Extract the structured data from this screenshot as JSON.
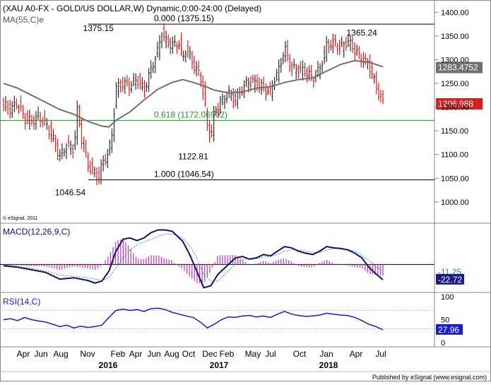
{
  "colors": {
    "up": "#2e2e2e",
    "down": "#d62020",
    "ma": "#707070",
    "fib": "#2e8b2e",
    "macd": "#10106e",
    "signal": "#2a9a6a",
    "hist": "#c040c0",
    "rsi": "#1a1ad0",
    "ma_tag": "#707070",
    "price_tag": "#d62020",
    "neg_tag": "#1a1a80",
    "rsi_tag": "#1a1ad0"
  },
  "chart_data": {
    "type": "candlestick",
    "title": "(XAU A0-FX - GOLD/US DOLLAR,W) Dynamic,0:00-24:00 (Delayed)",
    "ma_label": "MA(55,C)e",
    "watermark": "© eSignal, 2011",
    "footer": "Published by eSignal (www.esignal.com)",
    "price_axis": {
      "ylim": [
        955,
        1420
      ],
      "ticks": [
        "1000.00",
        "1050.00",
        "1100.00",
        "1150.00",
        "1200.00",
        "1250.00",
        "1300.00",
        "1350.00",
        "1400.00"
      ]
    },
    "time_labels": [
      "Apr",
      "Jun",
      "Aug",
      "Nov",
      "Feb",
      "Apr",
      "Jun",
      "Aug",
      "Oct",
      "Dec",
      "Feb",
      "May",
      "Jul",
      "Oct",
      "Jan",
      "Apr",
      "Jul"
    ],
    "year_labels": [
      "2016",
      "2017",
      "2018"
    ],
    "levels": [
      {
        "label": "0.000 (1375.15)",
        "price": 1375.15
      },
      {
        "label": "0.618 (1172.06902)",
        "price": 1172.07
      },
      {
        "label": "1.000 (1046.54)",
        "price": 1046.54
      }
    ],
    "annotations": [
      "1375.15",
      "1122.81",
      "1046.54",
      "1365.24"
    ],
    "last_price": "1206.988",
    "ma_value": "1283.4752",
    "close_path": [
      [
        0,
        1205
      ],
      [
        10,
        1195
      ],
      [
        20,
        1210
      ],
      [
        30,
        1175
      ],
      [
        40,
        1170
      ],
      [
        50,
        1180
      ],
      [
        60,
        1165
      ],
      [
        70,
        1135
      ],
      [
        80,
        1095
      ],
      [
        90,
        1120
      ],
      [
        100,
        1110
      ],
      [
        105,
        1195
      ],
      [
        110,
        1140
      ],
      [
        120,
        1080
      ],
      [
        130,
        1060
      ],
      [
        135,
        1050
      ],
      [
        140,
        1080
      ],
      [
        150,
        1105
      ],
      [
        155,
        1150
      ],
      [
        160,
        1240
      ],
      [
        170,
        1250
      ],
      [
        180,
        1245
      ],
      [
        190,
        1260
      ],
      [
        200,
        1235
      ],
      [
        210,
        1280
      ],
      [
        220,
        1320
      ],
      [
        225,
        1360
      ],
      [
        230,
        1340
      ],
      [
        240,
        1330
      ],
      [
        250,
        1335
      ],
      [
        255,
        1300
      ],
      [
        260,
        1325
      ],
      [
        270,
        1290
      ],
      [
        280,
        1265
      ],
      [
        285,
        1225
      ],
      [
        290,
        1160
      ],
      [
        295,
        1135
      ],
      [
        300,
        1190
      ],
      [
        310,
        1210
      ],
      [
        320,
        1230
      ],
      [
        330,
        1215
      ],
      [
        340,
        1240
      ],
      [
        350,
        1255
      ],
      [
        360,
        1250
      ],
      [
        370,
        1240
      ],
      [
        380,
        1230
      ],
      [
        385,
        1260
      ],
      [
        390,
        1270
      ],
      [
        400,
        1325
      ],
      [
        410,
        1280
      ],
      [
        420,
        1280
      ],
      [
        430,
        1275
      ],
      [
        440,
        1260
      ],
      [
        450,
        1280
      ],
      [
        460,
        1330
      ],
      [
        470,
        1335
      ],
      [
        480,
        1325
      ],
      [
        490,
        1340
      ],
      [
        500,
        1320
      ],
      [
        510,
        1300
      ],
      [
        520,
        1290
      ],
      [
        530,
        1245
      ],
      [
        540,
        1207
      ]
    ],
    "ma_path": [
      [
        0,
        1250
      ],
      [
        20,
        1240
      ],
      [
        40,
        1225
      ],
      [
        60,
        1210
      ],
      [
        80,
        1195
      ],
      [
        100,
        1185
      ],
      [
        120,
        1170
      ],
      [
        140,
        1160
      ],
      [
        150,
        1158
      ],
      [
        160,
        1172
      ],
      [
        180,
        1190
      ],
      [
        200,
        1215
      ],
      [
        220,
        1238
      ],
      [
        240,
        1252
      ],
      [
        255,
        1258
      ],
      [
        270,
        1252
      ],
      [
        285,
        1245
      ],
      [
        300,
        1236
      ],
      [
        320,
        1230
      ],
      [
        340,
        1232
      ],
      [
        360,
        1240
      ],
      [
        380,
        1243
      ],
      [
        400,
        1252
      ],
      [
        420,
        1258
      ],
      [
        440,
        1262
      ],
      [
        460,
        1276
      ],
      [
        480,
        1290
      ],
      [
        500,
        1298
      ],
      [
        520,
        1295
      ],
      [
        540,
        1285
      ]
    ],
    "macd": {
      "label": "MACD(12,26,9,C)",
      "ylim": [
        -40,
        60
      ],
      "values_shown": [
        "-11.25",
        "-22.72"
      ],
      "macd_path": [
        [
          0,
          -2
        ],
        [
          20,
          -4
        ],
        [
          40,
          -8
        ],
        [
          60,
          -12
        ],
        [
          80,
          -22
        ],
        [
          100,
          -20
        ],
        [
          120,
          -24
        ],
        [
          130,
          -28
        ],
        [
          140,
          -25
        ],
        [
          150,
          -10
        ],
        [
          160,
          20
        ],
        [
          170,
          38
        ],
        [
          180,
          40
        ],
        [
          190,
          36
        ],
        [
          200,
          40
        ],
        [
          210,
          48
        ],
        [
          220,
          52
        ],
        [
          230,
          52
        ],
        [
          240,
          50
        ],
        [
          255,
          35
        ],
        [
          265,
          15
        ],
        [
          275,
          -10
        ],
        [
          285,
          -35
        ],
        [
          295,
          -32
        ],
        [
          305,
          -15
        ],
        [
          315,
          -5
        ],
        [
          330,
          10
        ],
        [
          340,
          12
        ],
        [
          350,
          8
        ],
        [
          360,
          10
        ],
        [
          370,
          15
        ],
        [
          380,
          13
        ],
        [
          390,
          20
        ],
        [
          400,
          27
        ],
        [
          410,
          25
        ],
        [
          420,
          20
        ],
        [
          430,
          17
        ],
        [
          440,
          15
        ],
        [
          450,
          20
        ],
        [
          460,
          27
        ],
        [
          470,
          25
        ],
        [
          480,
          24
        ],
        [
          490,
          22
        ],
        [
          500,
          17
        ],
        [
          510,
          10
        ],
        [
          520,
          -4
        ],
        [
          530,
          -14
        ],
        [
          540,
          -23
        ]
      ],
      "signal_path": [
        [
          0,
          -1
        ],
        [
          20,
          -3
        ],
        [
          40,
          -6
        ],
        [
          60,
          -10
        ],
        [
          80,
          -16
        ],
        [
          100,
          -18
        ],
        [
          120,
          -20
        ],
        [
          140,
          -24
        ],
        [
          150,
          -20
        ],
        [
          160,
          -5
        ],
        [
          170,
          10
        ],
        [
          180,
          22
        ],
        [
          190,
          30
        ],
        [
          200,
          34
        ],
        [
          215,
          40
        ],
        [
          230,
          46
        ],
        [
          245,
          45
        ],
        [
          255,
          40
        ],
        [
          265,
          28
        ],
        [
          275,
          10
        ],
        [
          285,
          -15
        ],
        [
          295,
          -25
        ],
        [
          305,
          -25
        ],
        [
          315,
          -15
        ],
        [
          330,
          0
        ],
        [
          340,
          7
        ],
        [
          350,
          9
        ],
        [
          360,
          9
        ],
        [
          370,
          11
        ],
        [
          380,
          12
        ],
        [
          390,
          15
        ],
        [
          400,
          20
        ],
        [
          410,
          22
        ],
        [
          420,
          22
        ],
        [
          430,
          20
        ],
        [
          440,
          18
        ],
        [
          450,
          18
        ],
        [
          460,
          22
        ],
        [
          470,
          24
        ],
        [
          480,
          24
        ],
        [
          490,
          23
        ],
        [
          500,
          20
        ],
        [
          510,
          14
        ],
        [
          520,
          6
        ],
        [
          530,
          -3
        ],
        [
          540,
          -11
        ]
      ]
    },
    "rsi": {
      "label": "RSI(14,C)",
      "ylim": [
        0,
        100
      ],
      "ticks": [
        "100",
        "50",
        "0"
      ],
      "value_shown": "27.96",
      "rsi_path": [
        [
          0,
          50
        ],
        [
          10,
          52
        ],
        [
          20,
          48
        ],
        [
          30,
          55
        ],
        [
          40,
          50
        ],
        [
          50,
          47
        ],
        [
          60,
          45
        ],
        [
          70,
          40
        ],
        [
          80,
          35
        ],
        [
          90,
          38
        ],
        [
          100,
          32
        ],
        [
          110,
          36
        ],
        [
          120,
          33
        ],
        [
          130,
          35
        ],
        [
          140,
          38
        ],
        [
          150,
          55
        ],
        [
          160,
          70
        ],
        [
          170,
          73
        ],
        [
          180,
          70
        ],
        [
          190,
          72
        ],
        [
          200,
          68
        ],
        [
          210,
          74
        ],
        [
          220,
          75
        ],
        [
          230,
          72
        ],
        [
          240,
          66
        ],
        [
          250,
          62
        ],
        [
          260,
          58
        ],
        [
          270,
          55
        ],
        [
          280,
          45
        ],
        [
          290,
          32
        ],
        [
          300,
          40
        ],
        [
          310,
          50
        ],
        [
          320,
          56
        ],
        [
          330,
          55
        ],
        [
          340,
          58
        ],
        [
          350,
          59
        ],
        [
          360,
          56
        ],
        [
          370,
          58
        ],
        [
          380,
          55
        ],
        [
          390,
          62
        ],
        [
          400,
          68
        ],
        [
          410,
          62
        ],
        [
          420,
          59
        ],
        [
          430,
          57
        ],
        [
          440,
          58
        ],
        [
          450,
          60
        ],
        [
          460,
          64
        ],
        [
          470,
          62
        ],
        [
          480,
          60
        ],
        [
          490,
          59
        ],
        [
          500,
          55
        ],
        [
          510,
          48
        ],
        [
          520,
          40
        ],
        [
          530,
          35
        ],
        [
          540,
          28
        ]
      ]
    }
  }
}
